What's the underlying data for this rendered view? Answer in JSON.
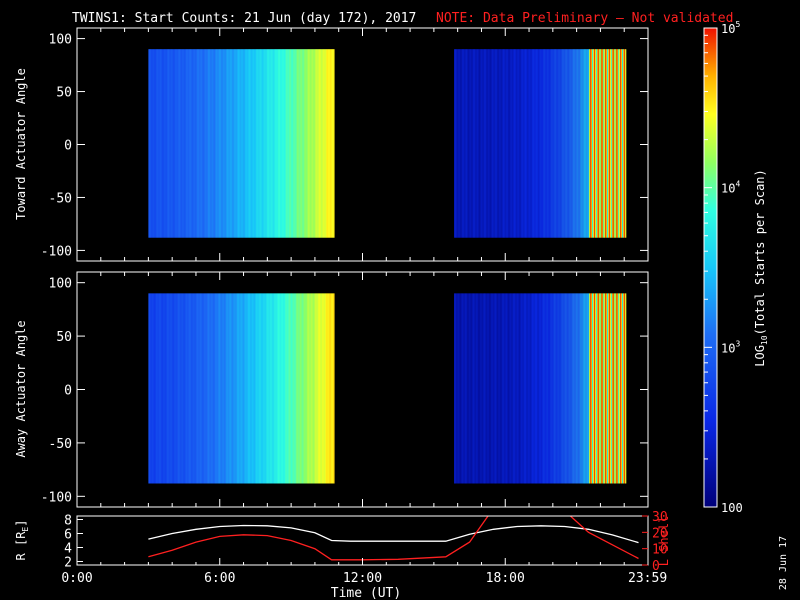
{
  "title": {
    "main": "TWINS1: Start Counts: 21 Jun (day 172), 2017",
    "note": "NOTE: Data Preliminary — Not validated"
  },
  "chart_data": [
    {
      "type": "heatmap",
      "name": "toward",
      "ylabel": "Toward Actuator Angle",
      "ylim": [
        -110,
        110
      ],
      "yticks": [
        100,
        50,
        0,
        -50,
        -100
      ],
      "xlim": [
        0,
        24
      ],
      "data_blocks": [
        {
          "x_start_h": 3.0,
          "x_end_h": 10.8,
          "y_min": -88,
          "y_max": 90,
          "log_counts_start": 2.85,
          "log_counts_end": 4.55
        },
        {
          "x_start_h": 15.85,
          "x_end_h": 23.1,
          "y_min": -88,
          "y_max": 90,
          "log_counts_start": 2.35,
          "log_counts_end": 4.9
        }
      ]
    },
    {
      "type": "heatmap",
      "name": "away",
      "ylabel": "Away Actuator Angle",
      "ylim": [
        -110,
        110
      ],
      "yticks": [
        100,
        50,
        0,
        -50,
        -100
      ],
      "xlim": [
        0,
        24
      ],
      "data_blocks": [
        {
          "x_start_h": 3.0,
          "x_end_h": 10.8,
          "y_min": -88,
          "y_max": 90,
          "log_counts_start": 2.75,
          "log_counts_end": 4.6
        },
        {
          "x_start_h": 15.85,
          "x_end_h": 23.1,
          "y_min": -88,
          "y_max": 90,
          "log_counts_start": 2.3,
          "log_counts_end": 4.9
        }
      ]
    },
    {
      "type": "line",
      "name": "orbit",
      "ylabel_left": "R [R",
      "ylabel_left_sub": "E",
      "ylabel_left_close": "]",
      "ylabel_right": "L Shell",
      "ylim_left": [
        1.5,
        8.5
      ],
      "yticks_left": [
        8,
        6,
        4,
        2
      ],
      "ylim_right": [
        0,
        30
      ],
      "yticks_right": [
        30,
        20,
        10,
        0
      ],
      "series": [
        {
          "name": "R",
          "color": "#ffffff",
          "axis": "left",
          "x": [
            3.0,
            4.0,
            5.0,
            6.0,
            7.0,
            8.0,
            9.0,
            10.0,
            10.7,
            11.5,
            13.0,
            15.5,
            16.5,
            17.5,
            18.5,
            19.5,
            20.5,
            21.5,
            22.5,
            23.6
          ],
          "y": [
            5.2,
            6.0,
            6.6,
            7.0,
            7.15,
            7.1,
            6.8,
            6.1,
            5.0,
            4.9,
            4.9,
            4.9,
            5.9,
            6.6,
            7.0,
            7.1,
            7.0,
            6.6,
            5.8,
            4.7
          ]
        },
        {
          "name": "L Shell",
          "color": "#ff2020",
          "axis": "right",
          "x": [
            3.0,
            4.0,
            5.0,
            6.0,
            7.0,
            8.0,
            9.0,
            10.0,
            10.7,
            12.0,
            13.5,
            15.5,
            16.5,
            17.3,
            20.7,
            21.5,
            23.6
          ],
          "y": [
            5.0,
            9.0,
            14.0,
            17.5,
            18.5,
            18.0,
            15.0,
            10.0,
            3.2,
            3.2,
            3.5,
            5.0,
            14.0,
            30.5,
            30.5,
            20.0,
            4.0
          ]
        }
      ]
    }
  ],
  "xaxis": {
    "label": "Time (UT)",
    "ticks": [
      {
        "h": 0,
        "label": "0:00"
      },
      {
        "h": 6,
        "label": "6:00"
      },
      {
        "h": 12,
        "label": "12:00"
      },
      {
        "h": 18,
        "label": "18:00"
      },
      {
        "h": 23.983,
        "label": "23:59"
      }
    ]
  },
  "colorbar": {
    "label": "LOG",
    "label_sub": "10",
    "label_rest": "(Total Starts per Scan)",
    "range_log": [
      2,
      5
    ],
    "ticks": [
      {
        "log": 5,
        "base": "10",
        "exp": "5"
      },
      {
        "log": 4,
        "base": "10",
        "exp": "4"
      },
      {
        "log": 3,
        "base": "10",
        "exp": "3"
      },
      {
        "log": 2,
        "base": "100",
        "exp": ""
      }
    ]
  },
  "stamp": "28 Jun 17"
}
